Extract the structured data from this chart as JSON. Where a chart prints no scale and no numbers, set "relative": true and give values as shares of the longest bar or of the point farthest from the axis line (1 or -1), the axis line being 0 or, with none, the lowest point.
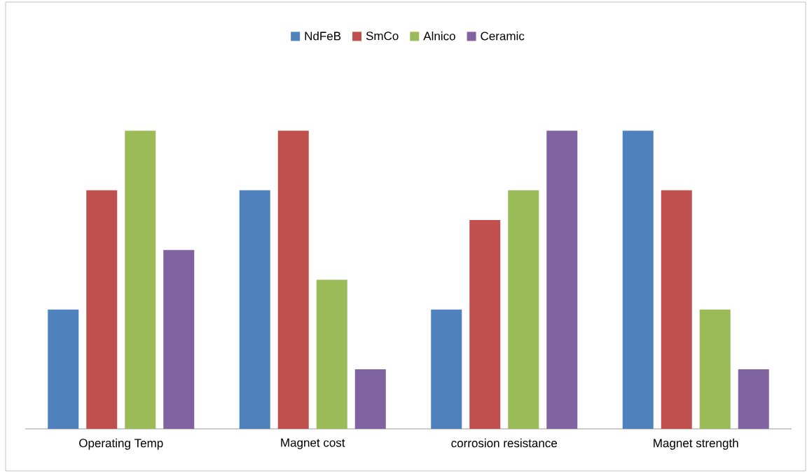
{
  "chart_data": {
    "type": "bar",
    "relative": true,
    "legend": "top",
    "categories": [
      "Operating Temp",
      "Magnet cost",
      "corrosion resistance",
      "Magnet strength"
    ],
    "series": [
      {
        "name": "NdFeB",
        "color": "#4f81bd",
        "values": [
          0.4,
          0.8,
          0.4,
          1
        ]
      },
      {
        "name": "SmCo",
        "color": "#c0504d",
        "values": [
          0.8,
          1,
          0.7,
          0.8
        ]
      },
      {
        "name": "Alnico",
        "color": "#9bbb59",
        "values": [
          1,
          0.5,
          0.8,
          0.4
        ]
      },
      {
        "name": "Ceramic",
        "color": "#8064a2",
        "values": [
          0.6,
          0.2,
          1,
          0.2
        ]
      }
    ]
  }
}
